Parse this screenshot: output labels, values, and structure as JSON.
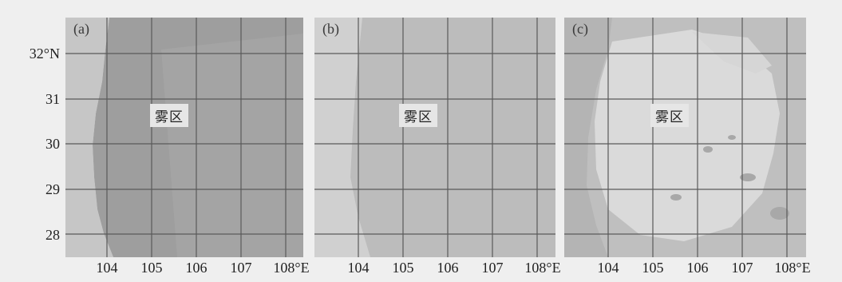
{
  "panels": [
    {
      "label": "(a)",
      "fog_text": "雾区"
    },
    {
      "label": "(b)",
      "fog_text": "雾区"
    },
    {
      "label": "(c)",
      "fog_text": "雾区"
    }
  ],
  "lat_ticks": [
    "32°N",
    "31",
    "30",
    "29",
    "28"
  ],
  "lon_ticks": [
    "104",
    "105",
    "106",
    "107",
    "108°E"
  ],
  "colors": {
    "panel_a_base": "#a9a9a9",
    "panel_b_base": "#bdbdbd",
    "panel_c_base": "#d2d2d2",
    "grid": "#5a5a5a"
  }
}
